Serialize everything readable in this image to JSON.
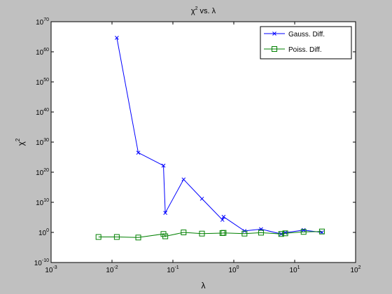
{
  "chart_data": {
    "type": "line",
    "title": "χ² vs. λ",
    "title_main": "χ",
    "title_sup": "2",
    "title_rest": " vs. λ",
    "xlabel": "λ",
    "ylabel_main": "χ",
    "ylabel_sup": "2",
    "x_scale": "log",
    "y_scale": "log",
    "xlim": [
      0.001,
      100
    ],
    "ylim": [
      1e-10,
      1e+70
    ],
    "x_ticks": [
      {
        "value": 0.001,
        "base": "10",
        "exp": "-3"
      },
      {
        "value": 0.01,
        "base": "10",
        "exp": "-2"
      },
      {
        "value": 0.1,
        "base": "10",
        "exp": "-1"
      },
      {
        "value": 1,
        "base": "10",
        "exp": "0"
      },
      {
        "value": 10,
        "base": "10",
        "exp": "1"
      },
      {
        "value": 100,
        "base": "10",
        "exp": "2"
      }
    ],
    "y_ticks": [
      {
        "value": 1e-10,
        "base": "10",
        "exp": "-10"
      },
      {
        "value": 1,
        "base": "10",
        "exp": "0"
      },
      {
        "value": 10000000000.0,
        "base": "10",
        "exp": "10"
      },
      {
        "value": 1e+20,
        "base": "10",
        "exp": "20"
      },
      {
        "value": 1e+30,
        "base": "10",
        "exp": "30"
      },
      {
        "value": 1e+40,
        "base": "10",
        "exp": "40"
      },
      {
        "value": 1e+50,
        "base": "10",
        "exp": "50"
      },
      {
        "value": 1e+60,
        "base": "10",
        "exp": "60"
      },
      {
        "value": 1e+70,
        "base": "10",
        "exp": "70"
      }
    ],
    "grid": false,
    "legend_position": "top-right",
    "series": [
      {
        "name": "Gauss. Diff.",
        "color": "#0000ff",
        "marker": "x",
        "x": [
          0.012,
          0.027,
          0.07,
          0.075,
          0.15,
          0.3,
          0.65,
          0.68,
          1.5,
          2.8,
          6,
          7,
          14,
          28
        ],
        "y": [
          4.5e+64,
          3e+26,
          1.5e+22,
          3000000.0,
          4e+17,
          150000000000.0,
          15000.0,
          150000.0,
          3,
          12,
          0.3,
          0.8,
          6,
          1
        ]
      },
      {
        "name": "Poiss. Diff.",
        "color": "#008000",
        "marker": "square",
        "x": [
          0.006,
          0.012,
          0.027,
          0.07,
          0.075,
          0.15,
          0.3,
          0.65,
          0.68,
          1.5,
          2.8,
          6,
          7,
          14,
          28
        ],
        "y": [
          0.03,
          0.03,
          0.02,
          0.3,
          0.05,
          1,
          0.4,
          0.6,
          0.7,
          0.4,
          0.8,
          0.3,
          0.5,
          1.5,
          2
        ]
      }
    ]
  }
}
